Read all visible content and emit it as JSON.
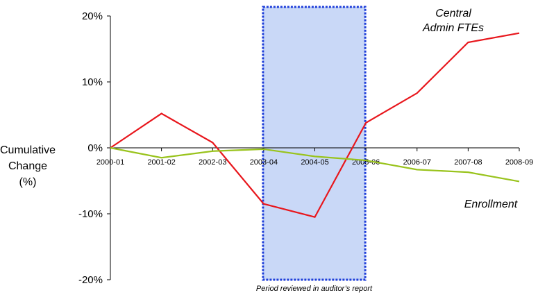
{
  "chart_data": {
    "type": "line",
    "categories": [
      "2000-01",
      "2001-02",
      "2002-03",
      "2003-04",
      "2004-05",
      "2005-06",
      "2006-07",
      "2007-08",
      "2008-09"
    ],
    "series": [
      {
        "name": "Central Admin FTEs",
        "values": [
          0,
          5.2,
          0.8,
          -8.5,
          -10.5,
          3.8,
          8.3,
          16.0,
          17.4
        ],
        "color": "#e8161c"
      },
      {
        "name": "Enrollment",
        "values": [
          0,
          -1.5,
          -0.5,
          -0.2,
          -1.3,
          -1.9,
          -3.3,
          -3.7,
          -5.1
        ],
        "color": "#99c31c"
      }
    ],
    "ylim": [
      -20,
      20
    ],
    "yticks": [
      -20,
      -10,
      0,
      10,
      20
    ],
    "ytick_labels": [
      "-20%",
      "-10%",
      "0%",
      "10%",
      "20%"
    ],
    "ylabel_lines": [
      "Cumulative",
      "Change",
      "(%)"
    ],
    "highlight": {
      "from_category": "2003-04",
      "to_category": "2005-06",
      "label": "Period reviewed in auditor’s report",
      "fill": "#c9d8f7",
      "border": "#1f3fd9"
    },
    "annotations": {
      "admin_line1": "Central",
      "admin_line2": "Admin FTEs",
      "enrollment": "Enrollment"
    },
    "grid": false,
    "legend": "none"
  }
}
